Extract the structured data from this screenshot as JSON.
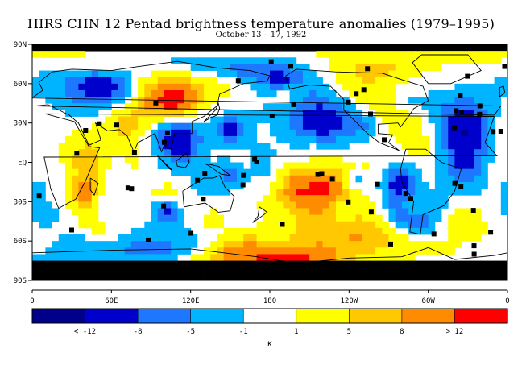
{
  "title": "HIRS CHN 12 Pentad brightness temperature anomalies (1979–1995)",
  "subtitle": "October 13 – 17, 1992",
  "map": {
    "projection": "equirectangular",
    "longitude_range": [
      0,
      360
    ],
    "latitude_range": [
      -90,
      90
    ],
    "missing_data_color": "#000000",
    "coastline_color": "#000000"
  },
  "lat_ticks": [
    "90N",
    "60N",
    "30N",
    "EQ",
    "30S",
    "60S",
    "90S"
  ],
  "lon_ticks": [
    "0",
    "60E",
    "120E",
    "180",
    "120W",
    "60W",
    "0"
  ],
  "colorbar": {
    "colors": [
      "#00008b",
      "#0000cd",
      "#1e78ff",
      "#00b4ff",
      "#ffffff",
      "#ffff00",
      "#ffc800",
      "#ff8c00",
      "#ff0000"
    ],
    "labels": [
      "< -12",
      "-8",
      "-5",
      "-1",
      "1",
      "5",
      "8",
      "> 12"
    ],
    "unit": "K"
  }
}
